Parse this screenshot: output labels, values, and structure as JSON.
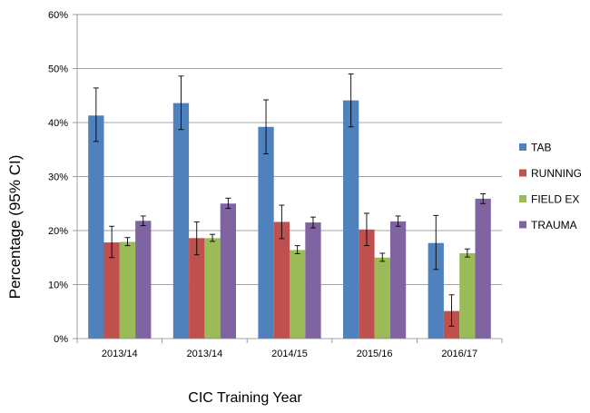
{
  "chart_data": {
    "type": "bar",
    "title": "",
    "xlabel": "CIC  Training Year",
    "ylabel": "Percentage  (95% CI)",
    "categories": [
      "2013/14",
      "2013/14",
      "2014/15",
      "2015/16",
      "2016/17"
    ],
    "ylim": [
      0,
      0.6
    ],
    "yticks": [
      0,
      0.1,
      0.2,
      0.3,
      0.4,
      0.5,
      0.6
    ],
    "ytick_labels": [
      "0%",
      "10%",
      "20%",
      "30%",
      "40%",
      "50%",
      "60%"
    ],
    "grid": true,
    "legend_position": "right",
    "series": [
      {
        "name": "TAB",
        "color": "#4F81BD",
        "values": [
          0.413,
          0.436,
          0.392,
          0.441,
          0.177
        ],
        "ci_low": [
          0.365,
          0.387,
          0.342,
          0.392,
          0.128
        ],
        "ci_high": [
          0.464,
          0.486,
          0.442,
          0.49,
          0.228
        ]
      },
      {
        "name": "RUNNING",
        "color": "#C0504D",
        "values": [
          0.178,
          0.186,
          0.216,
          0.202,
          0.051
        ],
        "ci_low": [
          0.15,
          0.155,
          0.185,
          0.172,
          0.023
        ],
        "ci_high": [
          0.208,
          0.216,
          0.247,
          0.232,
          0.081
        ]
      },
      {
        "name": "FIELD EX",
        "color": "#9BBB59",
        "values": [
          0.179,
          0.186,
          0.164,
          0.15,
          0.158
        ],
        "ci_low": [
          0.172,
          0.18,
          0.157,
          0.143,
          0.151
        ],
        "ci_high": [
          0.187,
          0.193,
          0.172,
          0.158,
          0.166
        ]
      },
      {
        "name": "TRAUMA",
        "color": "#8064A2",
        "values": [
          0.218,
          0.25,
          0.215,
          0.217,
          0.259
        ],
        "ci_low": [
          0.209,
          0.241,
          0.205,
          0.208,
          0.25
        ],
        "ci_high": [
          0.227,
          0.26,
          0.225,
          0.227,
          0.268
        ]
      }
    ]
  }
}
